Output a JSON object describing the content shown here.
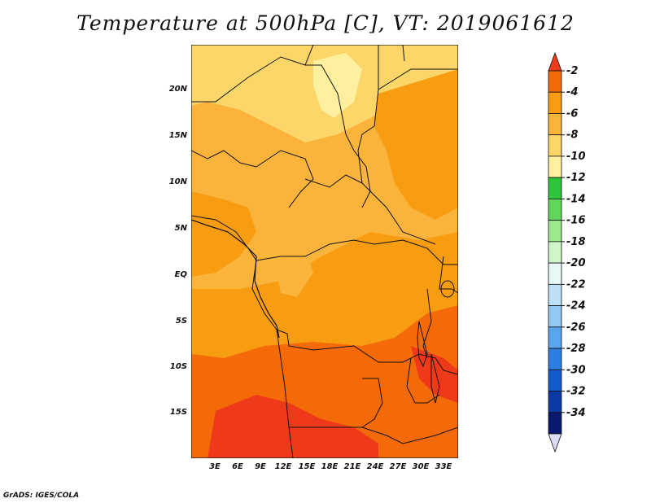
{
  "title": "Temperature at 500hPa [C], VT: 2019061612",
  "credit": "GrADS: IGES/COLA",
  "lat_labels": [
    "20N",
    "15N",
    "10N",
    "5N",
    "EQ",
    "5S",
    "10S",
    "15S"
  ],
  "lon_labels": [
    "3E",
    "6E",
    "9E",
    "12E",
    "15E",
    "18E",
    "21E",
    "24E",
    "27E",
    "30E",
    "33E"
  ],
  "colorbar": {
    "labels": [
      "-2",
      "-4",
      "-6",
      "-8",
      "-10",
      "-12",
      "-14",
      "-16",
      "-18",
      "-20",
      "-22",
      "-24",
      "-26",
      "-28",
      "-30",
      "-32",
      "-34"
    ],
    "colors": [
      "#ee3a1a",
      "#f46a08",
      "#f89c12",
      "#fab43c",
      "#fdd66a",
      "#fff0a0",
      "#2ec43c",
      "#62d65a",
      "#9ee88c",
      "#cff5c8",
      "#e8f8f8",
      "#bde0f6",
      "#93c8f2",
      "#5aa6ec",
      "#2e7ee2",
      "#145ccc",
      "#0b3aa6",
      "#0a1870",
      "#dcdcf8"
    ]
  },
  "map_colors": {
    "lightest": "#fff0a0",
    "light": "#fdd66a",
    "medium": "#fab43c",
    "orange": "#f89c12",
    "dark_orange": "#f46a08",
    "red": "#ee3a1a"
  }
}
